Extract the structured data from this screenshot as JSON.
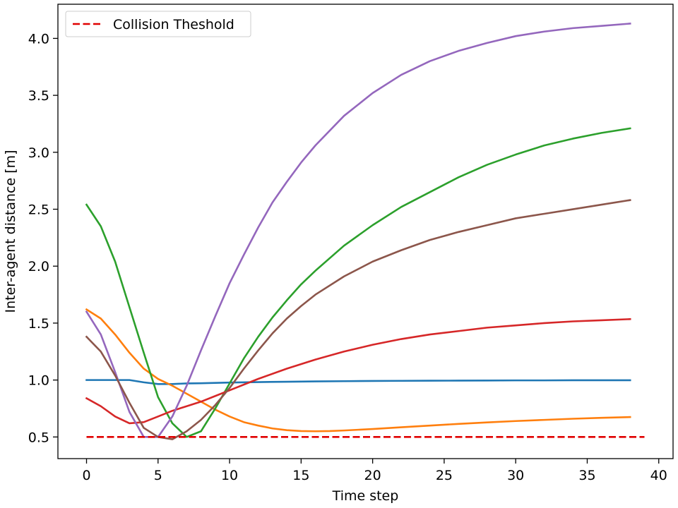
{
  "chart_data": {
    "type": "line",
    "title": "",
    "xlabel": "Time step",
    "ylabel": "Inter-agent distance [m]",
    "xlim": [
      -2,
      41
    ],
    "ylim": [
      0.31,
      4.3
    ],
    "xticks": [
      0,
      5,
      10,
      15,
      20,
      25,
      30,
      35,
      40
    ],
    "yticks": [
      0.5,
      1.0,
      1.5,
      2.0,
      2.5,
      3.0,
      3.5,
      4.0
    ],
    "grid": false,
    "legend_position": "top-left",
    "threshold": {
      "name": "Collision Theshold",
      "y": 0.5,
      "x_range": [
        0,
        39
      ],
      "color": "#e00000",
      "style": "dashed"
    },
    "series": [
      {
        "color": "#1f77b4",
        "x": [
          0,
          1,
          2,
          3,
          4,
          5,
          6,
          7,
          8,
          9,
          10,
          12,
          14,
          16,
          18,
          20,
          22,
          24,
          26,
          28,
          30,
          32,
          34,
          36,
          38
        ],
        "y": [
          1.0,
          1.0,
          1.0,
          1.0,
          0.98,
          0.965,
          0.965,
          0.97,
          0.972,
          0.975,
          0.978,
          0.982,
          0.985,
          0.988,
          0.99,
          0.992,
          0.993,
          0.994,
          0.995,
          0.996,
          0.997,
          0.997,
          0.998,
          0.998,
          0.998
        ]
      },
      {
        "color": "#ff7f0e",
        "x": [
          0,
          1,
          2,
          3,
          4,
          5,
          6,
          7,
          8,
          9,
          10,
          11,
          12,
          13,
          14,
          15,
          16,
          17,
          18,
          20,
          22,
          24,
          26,
          28,
          30,
          32,
          34,
          36,
          38
        ],
        "y": [
          1.62,
          1.54,
          1.4,
          1.24,
          1.1,
          1.01,
          0.95,
          0.88,
          0.81,
          0.74,
          0.68,
          0.63,
          0.6,
          0.575,
          0.56,
          0.552,
          0.55,
          0.552,
          0.557,
          0.57,
          0.585,
          0.6,
          0.615,
          0.628,
          0.64,
          0.65,
          0.66,
          0.668,
          0.675
        ]
      },
      {
        "color": "#2ca02c",
        "x": [
          0,
          1,
          2,
          3,
          4,
          5,
          6,
          7,
          8,
          9,
          10,
          11,
          12,
          13,
          14,
          15,
          16,
          18,
          20,
          22,
          24,
          26,
          28,
          30,
          32,
          34,
          36,
          38
        ],
        "y": [
          2.54,
          2.35,
          2.04,
          1.64,
          1.24,
          0.85,
          0.62,
          0.5,
          0.55,
          0.75,
          0.97,
          1.19,
          1.38,
          1.55,
          1.7,
          1.84,
          1.96,
          2.18,
          2.36,
          2.52,
          2.65,
          2.78,
          2.89,
          2.98,
          3.06,
          3.12,
          3.17,
          3.21
        ]
      },
      {
        "color": "#d62728",
        "x": [
          0,
          1,
          2,
          3,
          4,
          5,
          6,
          7,
          8,
          9,
          10,
          12,
          14,
          16,
          18,
          20,
          22,
          24,
          26,
          28,
          30,
          32,
          34,
          36,
          38
        ],
        "y": [
          0.84,
          0.77,
          0.68,
          0.62,
          0.63,
          0.68,
          0.73,
          0.77,
          0.81,
          0.86,
          0.91,
          1.01,
          1.1,
          1.18,
          1.25,
          1.31,
          1.36,
          1.4,
          1.43,
          1.46,
          1.48,
          1.5,
          1.515,
          1.525,
          1.535
        ]
      },
      {
        "color": "#9467bd",
        "x": [
          0,
          1,
          2,
          3,
          4,
          5,
          6,
          7,
          8,
          9,
          10,
          11,
          12,
          13,
          14,
          15,
          16,
          18,
          20,
          22,
          24,
          26,
          28,
          30,
          32,
          34,
          36,
          38
        ],
        "y": [
          1.6,
          1.4,
          1.07,
          0.72,
          0.5,
          0.5,
          0.68,
          0.95,
          1.26,
          1.56,
          1.85,
          2.1,
          2.34,
          2.56,
          2.74,
          2.91,
          3.06,
          3.32,
          3.52,
          3.68,
          3.8,
          3.89,
          3.96,
          4.02,
          4.06,
          4.09,
          4.11,
          4.13
        ]
      },
      {
        "color": "#8c564b",
        "x": [
          0,
          1,
          2,
          3,
          4,
          5,
          6,
          7,
          8,
          9,
          10,
          11,
          12,
          13,
          14,
          15,
          16,
          18,
          20,
          22,
          24,
          26,
          28,
          30,
          32,
          34,
          36,
          38
        ],
        "y": [
          1.38,
          1.25,
          1.04,
          0.8,
          0.58,
          0.5,
          0.48,
          0.55,
          0.65,
          0.78,
          0.93,
          1.1,
          1.26,
          1.41,
          1.54,
          1.65,
          1.75,
          1.91,
          2.04,
          2.14,
          2.23,
          2.3,
          2.36,
          2.42,
          2.46,
          2.5,
          2.54,
          2.58
        ]
      }
    ]
  }
}
